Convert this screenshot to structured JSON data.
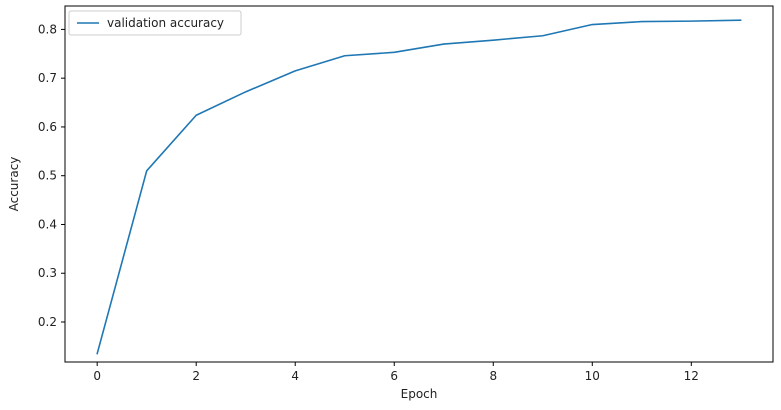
{
  "chart_data": {
    "type": "line",
    "title": "",
    "xlabel": "Epoch",
    "ylabel": "Accuracy",
    "xlim": [
      -0.65,
      13.65
    ],
    "ylim": [
      0.118,
      0.848
    ],
    "xticks": [
      0,
      2,
      4,
      6,
      8,
      10,
      12
    ],
    "yticks": [
      0.2,
      0.3,
      0.4,
      0.5,
      0.6,
      0.7,
      0.8
    ],
    "grid": false,
    "legend_position": "top-left",
    "x": [
      0,
      1,
      2,
      3,
      4,
      5,
      6,
      7,
      8,
      9,
      10,
      11,
      12,
      13
    ],
    "series": [
      {
        "name": "validation accuracy",
        "color": "#1f77b4",
        "values": [
          0.135,
          0.51,
          0.624,
          0.672,
          0.715,
          0.746,
          0.753,
          0.77,
          0.778,
          0.787,
          0.81,
          0.816,
          0.817,
          0.819
        ]
      }
    ]
  }
}
